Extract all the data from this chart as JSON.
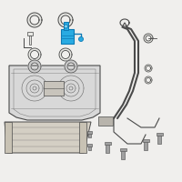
{
  "bg_color": "#f0efed",
  "highlight_color": "#29abe2",
  "highlight_dark": "#0d7ab5",
  "line_color": "#7a7a7a",
  "dark_line": "#4a4a4a",
  "light_gray": "#c8c8c8",
  "medium_gray": "#a0a0a0",
  "fill_gray": "#d8d8d8",
  "fill_light": "#e8e8e4",
  "fill_tan": "#d4cfc4"
}
